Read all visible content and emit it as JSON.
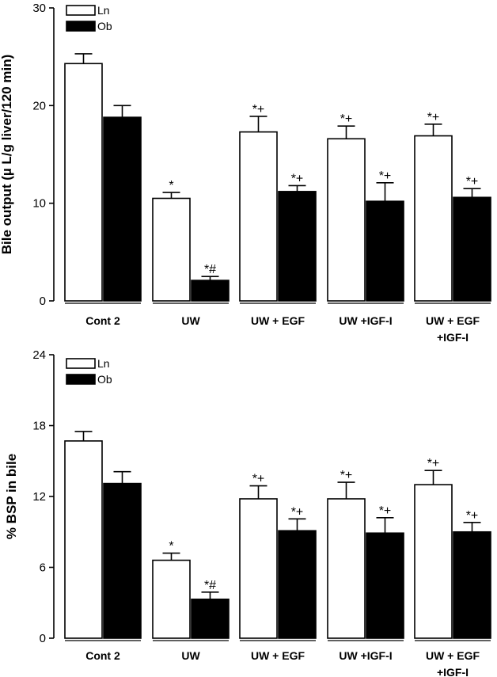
{
  "chart_data": [
    {
      "type": "bar",
      "ylabel": "Bile output (µ L/g liver/120 min)",
      "ylim": [
        0,
        30
      ],
      "yticks": [
        0,
        10,
        20,
        30
      ],
      "categories": [
        [
          "Cont 2"
        ],
        [
          "UW"
        ],
        [
          "UW + EGF"
        ],
        [
          "UW +IGF-I"
        ],
        [
          "UW + EGF",
          "+IGF-I"
        ]
      ],
      "series": [
        {
          "name": "Ln",
          "color": "#ffffff",
          "values": [
            24.3,
            10.5,
            17.3,
            16.6,
            16.9
          ],
          "errors": [
            1.0,
            0.6,
            1.6,
            1.3,
            1.2
          ],
          "annotations": [
            "",
            "*",
            "*+",
            "*+",
            "*+"
          ]
        },
        {
          "name": "Ob",
          "color": "#000000",
          "values": [
            18.8,
            2.1,
            11.2,
            10.2,
            10.6
          ],
          "errors": [
            1.2,
            0.4,
            0.6,
            1.9,
            0.9
          ],
          "annotations": [
            "",
            "*#",
            "*+",
            "*+",
            "*+"
          ]
        }
      ],
      "legend": "top-left",
      "grid": false
    },
    {
      "type": "bar",
      "ylabel": "% BSP in bile",
      "ylim": [
        0,
        24
      ],
      "yticks": [
        0,
        6,
        12,
        18,
        24
      ],
      "categories": [
        [
          "Cont 2"
        ],
        [
          "UW"
        ],
        [
          "UW + EGF"
        ],
        [
          "UW +IGF-I"
        ],
        [
          "UW + EGF",
          "+IGF-I"
        ]
      ],
      "series": [
        {
          "name": "Ln",
          "color": "#ffffff",
          "values": [
            16.7,
            6.6,
            11.8,
            11.8,
            13.0
          ],
          "errors": [
            0.8,
            0.6,
            1.1,
            1.4,
            1.2
          ],
          "annotations": [
            "",
            "*",
            "*+",
            "*+",
            "*+"
          ]
        },
        {
          "name": "Ob",
          "color": "#000000",
          "values": [
            13.1,
            3.3,
            9.1,
            8.9,
            9.0
          ],
          "errors": [
            1.0,
            0.6,
            1.0,
            1.3,
            0.8
          ],
          "annotations": [
            "",
            "*#",
            "*+",
            "*+",
            "*+"
          ]
        }
      ],
      "legend": "top-left",
      "grid": false
    }
  ]
}
